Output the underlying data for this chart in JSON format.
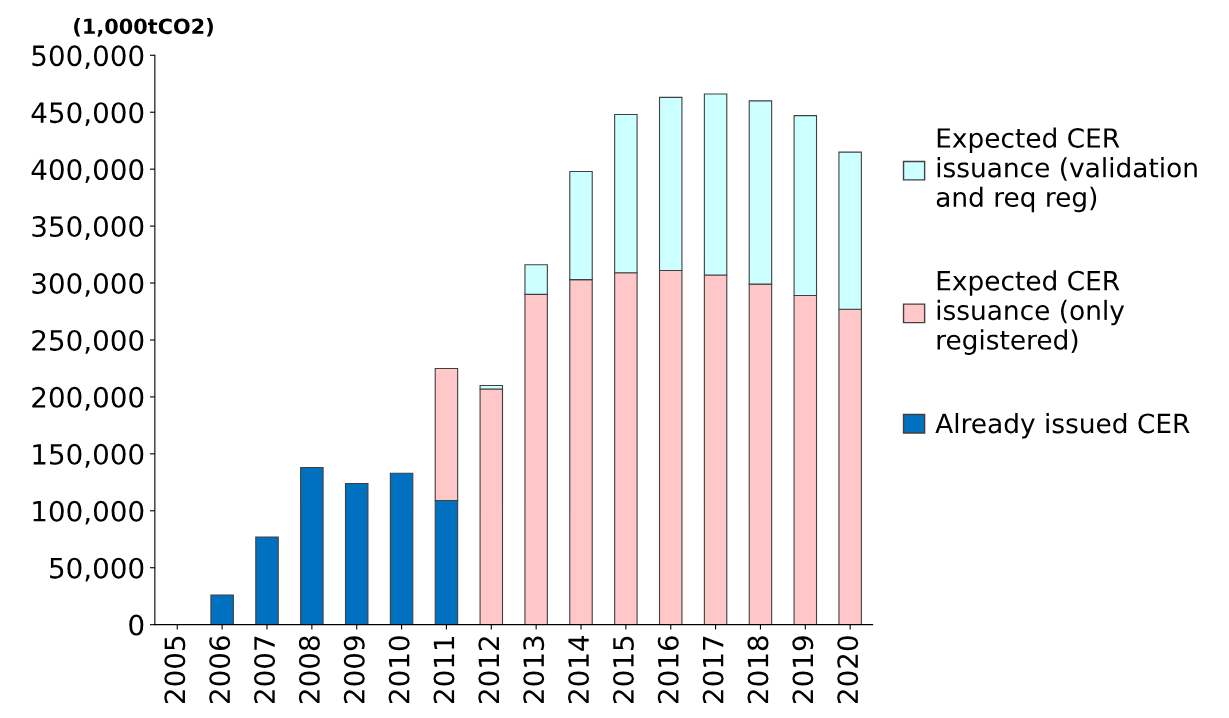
{
  "chart_data": {
    "type": "bar",
    "stacked": true,
    "ylabel": "(1,000tCO2)",
    "categories": [
      "2005",
      "2006",
      "2007",
      "2008",
      "2009",
      "2010",
      "2011",
      "2012",
      "2013",
      "2014",
      "2015",
      "2016",
      "2017",
      "2018",
      "2019",
      "2020"
    ],
    "series": [
      {
        "name": "Already issued CER",
        "color": "#0070c0",
        "values": [
          null,
          26000,
          77000,
          138000,
          124000,
          133000,
          109000,
          null,
          null,
          null,
          null,
          null,
          null,
          null,
          null,
          null
        ]
      },
      {
        "name": "Expected CER\nissuance (only\nregistered)",
        "color": "#ffc7c7",
        "values": [
          null,
          null,
          null,
          null,
          null,
          null,
          116000,
          207000,
          290000,
          303000,
          309000,
          311000,
          307000,
          299000,
          289000,
          277000
        ]
      },
      {
        "name": "Expected CER\nissuance (validation\nand req reg)",
        "color": "#ccffff",
        "values": [
          null,
          null,
          null,
          null,
          null,
          null,
          null,
          3000,
          26000,
          95000,
          139000,
          152000,
          159000,
          161000,
          158000,
          138000
        ]
      }
    ],
    "ylim": [
      0,
      500000
    ],
    "yticks": [
      {
        "value": 0,
        "label": "0"
      },
      {
        "value": 50000,
        "label": "50,000"
      },
      {
        "value": 100000,
        "label": "100,000"
      },
      {
        "value": 150000,
        "label": "150,000"
      },
      {
        "value": 200000,
        "label": "200,000"
      },
      {
        "value": 250000,
        "label": "250,000"
      },
      {
        "value": 300000,
        "label": "300,000"
      },
      {
        "value": 350000,
        "label": "350,000"
      },
      {
        "value": 400000,
        "label": "400,000"
      },
      {
        "value": 450000,
        "label": "450,000"
      },
      {
        "value": 500000,
        "label": "500,000"
      }
    ],
    "grid": false,
    "legend": "right"
  }
}
